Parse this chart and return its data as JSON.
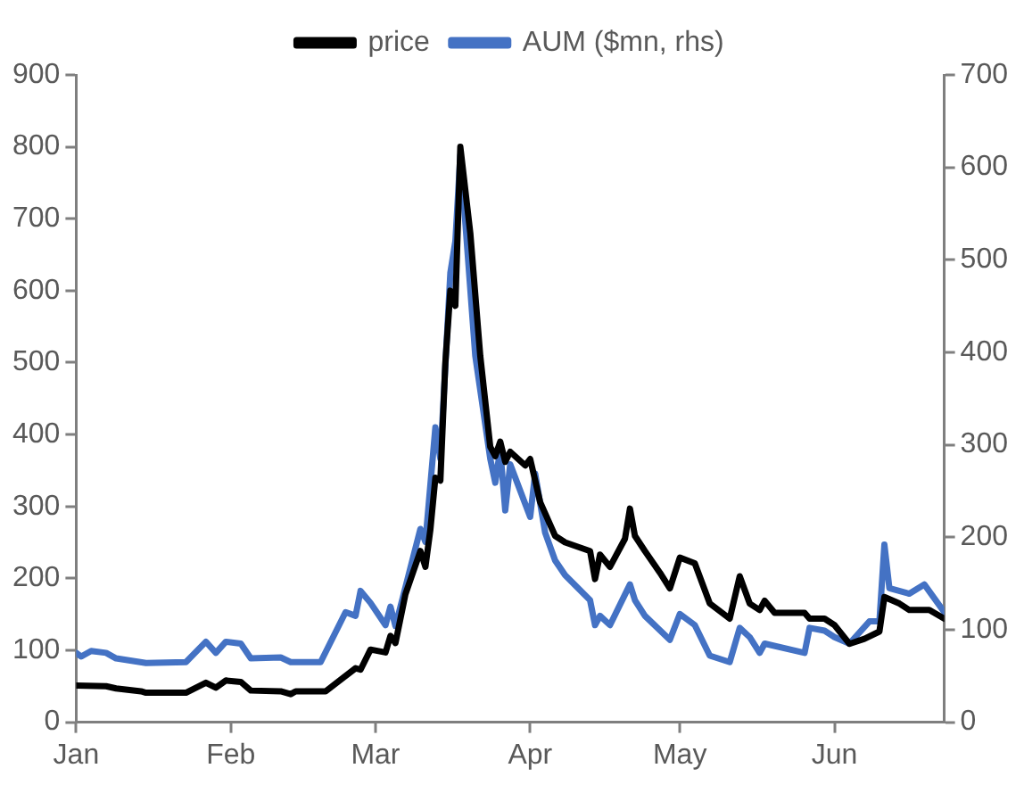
{
  "chart_data": {
    "type": "line",
    "legend": "top",
    "marker": "none",
    "line_style": "solid",
    "grid": false,
    "xlim": [
      "--01-01",
      "--06-23"
    ],
    "xticks": [
      {
        "value": "--01-01",
        "label": "Jan"
      },
      {
        "value": "--02-01",
        "label": "Feb"
      },
      {
        "value": "--03-01",
        "label": "Mar"
      },
      {
        "value": "--04-01",
        "label": "Apr"
      },
      {
        "value": "--05-01",
        "label": "May"
      },
      {
        "value": "--06-01",
        "label": "Jun"
      }
    ],
    "ylim": [
      0,
      900
    ],
    "yticks": [
      0,
      100,
      200,
      300,
      400,
      500,
      600,
      700,
      800,
      900
    ],
    "y2lim": [
      0,
      700
    ],
    "y2ticks": [
      0,
      100,
      200,
      300,
      400,
      500,
      600,
      700
    ],
    "series": [
      {
        "name": "price",
        "color": "#000000",
        "x": [
          "--01-01",
          "--01-07",
          "--01-09",
          "--01-14",
          "--01-15",
          "--01-23",
          "--01-27",
          "--01-29",
          "--01-31",
          "--02-03",
          "--02-05",
          "--02-11",
          "--02-13",
          "--02-14",
          "--02-20",
          "--02-26",
          "--02-27",
          "--02-29",
          "--03-03",
          "--03-04",
          "--03-05",
          "--03-07",
          "--03-10",
          "--03-11",
          "--03-12",
          "--03-13",
          "--03-14",
          "--03-15",
          "--03-16",
          "--03-17",
          "--03-18",
          "--03-20",
          "--03-22",
          "--03-24",
          "--03-25",
          "--03-26",
          "--03-27",
          "--03-28",
          "--03-31",
          "--04-01",
          "--04-03",
          "--04-06",
          "--04-08",
          "--04-13",
          "--04-14",
          "--04-15",
          "--04-17",
          "--04-20",
          "--04-21",
          "--04-22",
          "--04-24",
          "--04-27",
          "--04-29",
          "--05-01",
          "--05-04",
          "--05-07",
          "--05-11",
          "--05-13",
          "--05-15",
          "--05-17",
          "--05-18",
          "--05-20",
          "--05-26",
          "--05-27",
          "--05-30",
          "--06-01",
          "--06-04",
          "--06-07",
          "--06-10",
          "--06-11",
          "--06-14",
          "--06-16",
          "--06-20",
          "--06-23"
        ],
        "values": [
          51,
          50,
          47,
          43,
          41,
          41,
          55,
          48,
          58,
          56,
          44,
          43,
          39,
          43,
          43,
          75,
          73,
          101,
          97,
          120,
          110,
          178,
          238,
          216,
          268,
          340,
          336,
          500,
          600,
          579,
          800,
          680,
          509,
          383,
          370,
          390,
          362,
          376,
          357,
          366,
          306,
          259,
          250,
          238,
          199,
          233,
          216,
          255,
          297,
          259,
          238,
          208,
          186,
          229,
          221,
          165,
          144,
          203,
          165,
          156,
          169,
          152,
          152,
          144,
          144,
          135,
          109,
          116,
          126,
          174,
          165,
          156,
          156,
          144
        ]
      },
      {
        "name": "AUM ($mn, rhs)",
        "color": "#4472c4",
        "axis": "y2",
        "x": [
          "--01-01",
          "--01-02",
          "--01-04",
          "--01-07",
          "--01-09",
          "--01-15",
          "--01-23",
          "--01-27",
          "--01-29",
          "--01-31",
          "--02-03",
          "--02-05",
          "--02-11",
          "--02-13",
          "--02-19",
          "--02-24",
          "--02-26",
          "--02-27",
          "--02-29",
          "--03-03",
          "--03-04",
          "--03-05",
          "--03-10",
          "--03-11",
          "--03-13",
          "--03-14",
          "--03-16",
          "--03-17",
          "--03-18",
          "--03-21",
          "--03-24",
          "--03-25",
          "--03-26",
          "--03-27",
          "--03-28",
          "--04-01",
          "--04-02",
          "--04-04",
          "--04-06",
          "--04-08",
          "--04-13",
          "--04-14",
          "--04-15",
          "--04-17",
          "--04-21",
          "--04-22",
          "--04-24",
          "--04-29",
          "--05-01",
          "--05-04",
          "--05-07",
          "--05-11",
          "--05-13",
          "--05-15",
          "--05-17",
          "--05-18",
          "--05-26",
          "--05-27",
          "--05-30",
          "--06-01",
          "--06-04",
          "--06-08",
          "--06-10",
          "--06-11",
          "--06-12",
          "--06-16",
          "--06-19",
          "--06-23"
        ],
        "values": [
          75,
          71,
          77,
          75,
          69,
          64,
          65,
          87,
          75,
          87,
          85,
          69,
          70,
          65,
          65,
          119,
          115,
          142,
          129,
          105,
          125,
          104,
          209,
          195,
          319,
          285,
          486,
          520,
          613,
          396,
          285,
          259,
          295,
          229,
          279,
          222,
          269,
          205,
          175,
          159,
          132,
          105,
          115,
          105,
          149,
          132,
          115,
          89,
          117,
          105,
          72,
          65,
          102,
          92,
          75,
          85,
          75,
          102,
          99,
          92,
          85,
          109,
          109,
          192,
          145,
          139,
          149,
          119
        ]
      }
    ]
  }
}
